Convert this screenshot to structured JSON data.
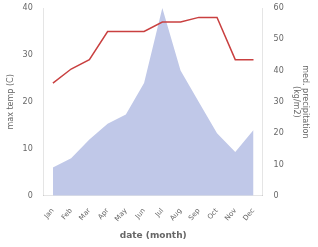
{
  "chart_data": {
    "type": "line",
    "xlabel": "date (month)",
    "ylabel": "max temp (C)",
    "y2label": "med. precipitation\n(kg/m2)",
    "categories": [
      "Jan",
      "Feb",
      "Mar",
      "Apr",
      "May",
      "Jun",
      "Jul",
      "Aug",
      "Sep",
      "Oct",
      "Nov",
      "Dec"
    ],
    "series": [
      {
        "type": "line",
        "color": "#c94040",
        "marker": "none",
        "values": [
          24,
          27,
          29,
          35,
          35,
          35,
          37,
          37,
          38,
          38,
          29,
          29
        ]
      },
      {
        "type": "area",
        "color": "#c0c8e8",
        "axis": "y2",
        "values": [
          9,
          12,
          18,
          23,
          26,
          36,
          60,
          40,
          30,
          20,
          14,
          21
        ]
      }
    ],
    "ylim": [
      0,
      40
    ],
    "yticks": [
      0,
      10,
      20,
      30,
      40
    ],
    "y2lim": [
      0,
      60
    ],
    "y2ticks": [
      0,
      10,
      20,
      30,
      40,
      50,
      60
    ],
    "grid": false,
    "legend": false
  }
}
